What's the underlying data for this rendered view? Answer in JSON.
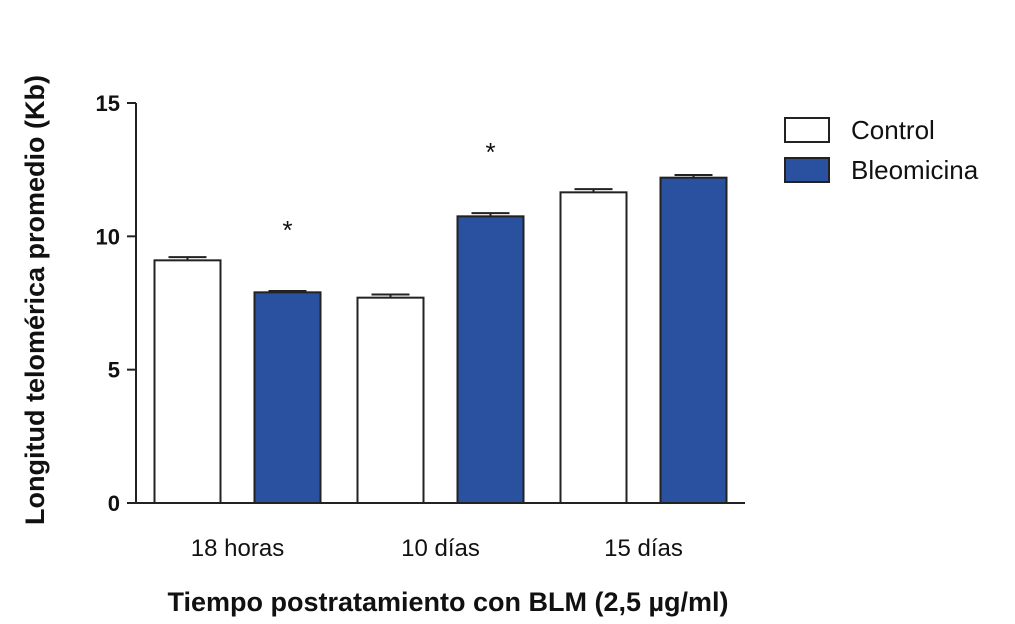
{
  "chart_data": {
    "type": "bar",
    "title": "",
    "xlabel": "Tiempo postratamiento con BLM (2,5 µg/ml)",
    "ylabel": "Longitud telomérica promedio (Kb)",
    "ylim": [
      0,
      15
    ],
    "yticks": [
      "0",
      "5",
      "10",
      "15"
    ],
    "categories": [
      "18 horas",
      "10 días",
      "15 días"
    ],
    "series": [
      {
        "name": "Control",
        "values": [
          9.1,
          7.7,
          11.65
        ],
        "errors": [
          0.12,
          0.12,
          0.12
        ],
        "color": "#ffffff"
      },
      {
        "name": "Bleomicina",
        "values": [
          7.9,
          10.75,
          12.2
        ],
        "errors": [
          0.05,
          0.12,
          0.1
        ],
        "color": "#2a50a0"
      }
    ],
    "annotations": [
      {
        "series": 1,
        "category": 0,
        "text": "*"
      },
      {
        "series": 1,
        "category": 1,
        "text": "*"
      }
    ],
    "legend_position": "top-right",
    "grid": false
  }
}
